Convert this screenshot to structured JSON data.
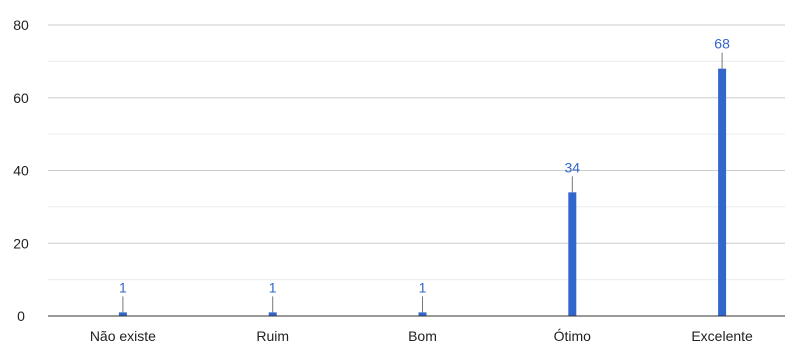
{
  "chart_data": {
    "type": "bar",
    "categories": [
      "Não existe",
      "Ruim",
      "Bom",
      "Ótimo",
      "Excelente"
    ],
    "values": [
      1,
      1,
      1,
      34,
      68
    ],
    "data_labels": [
      "1",
      "1",
      "1",
      "34",
      "68"
    ],
    "y_ticks": [
      "0",
      "20",
      "40",
      "60",
      "80"
    ],
    "ylim": [
      0,
      80
    ],
    "grid": true,
    "bar_color": "#3366cc",
    "label_color": "#3366cc",
    "gridline_color": "#cccccc",
    "minor_gridline_color": "#ebebeb",
    "axis_text_color": "#222222"
  }
}
